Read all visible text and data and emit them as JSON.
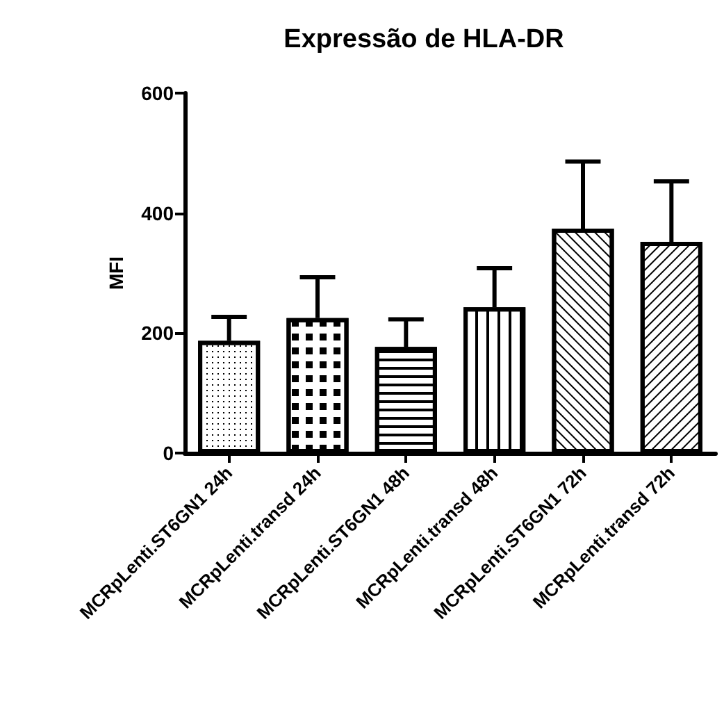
{
  "chart_data": {
    "type": "bar",
    "title": "Expressão de HLA-DR",
    "ylabel": "MFI",
    "categories": [
      "MCRpLenti.ST6GN1 24h",
      "MCRpLenti.transd 24h",
      "MCRpLenti.ST6GN1 48h",
      "MCRpLenti.transd 48h",
      "MCRpLenti.ST6GN1 72h",
      "MCRpLenti.transd 72h"
    ],
    "values": [
      187,
      225,
      177,
      243,
      374,
      352
    ],
    "errors": [
      [
        187,
        227
      ],
      [
        225,
        293
      ],
      [
        177,
        223
      ],
      [
        243,
        308
      ],
      [
        374,
        486
      ],
      [
        352,
        453
      ]
    ],
    "color": "#ffffff",
    "ylim": [
      0,
      600
    ],
    "yticks": [
      0,
      200,
      400,
      600
    ],
    "grid": false
  }
}
